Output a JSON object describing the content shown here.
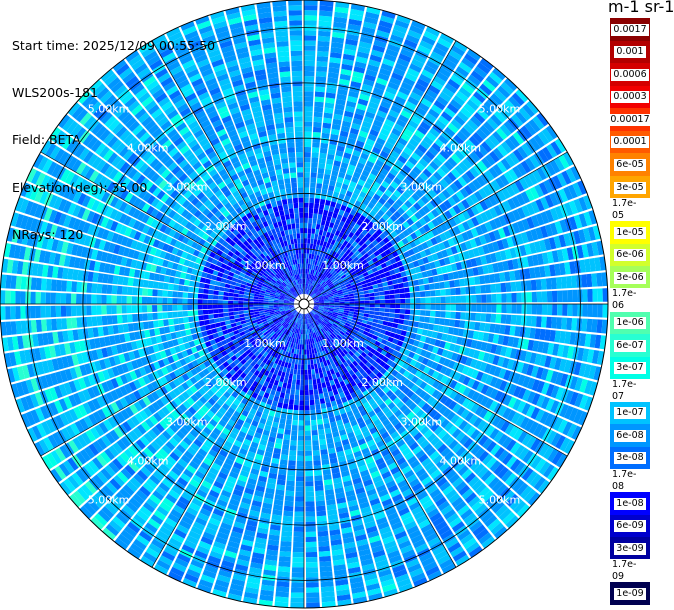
{
  "info": {
    "start_time": "Start time: 2025/12/09 00:55:50",
    "instrument": "WLS200s-181",
    "field": "Field: BETA",
    "elevation": "Elevation(deg): 35.00",
    "nrays": "NRays: 120"
  },
  "colorbar": {
    "unit_label": "m-1 sr-1",
    "levels": [
      {
        "label": "0.0017",
        "color": "#8b0000"
      },
      {
        "label": "0.001",
        "color": "#b30000"
      },
      {
        "label": "0.0006",
        "color": "#d40000"
      },
      {
        "label": "0.0003",
        "color": "#f20000"
      },
      {
        "label": "0.00017",
        "color": "#ff3200"
      },
      {
        "label": "0.0001",
        "color": "#ff5a00"
      },
      {
        "label": "6e-05",
        "color": "#ff8200"
      },
      {
        "label": "3e-05",
        "color": "#ffa500"
      },
      {
        "label": "1.7e-05",
        "color": "#ffcd00"
      },
      {
        "label": "1e-05",
        "color": "#ffff00"
      },
      {
        "label": "6e-06",
        "color": "#d2ff2d"
      },
      {
        "label": "3e-06",
        "color": "#a5ff5a"
      },
      {
        "label": "1.7e-06",
        "color": "#78ff87"
      },
      {
        "label": "1e-06",
        "color": "#50ffaf"
      },
      {
        "label": "6e-07",
        "color": "#28ffd2"
      },
      {
        "label": "3e-07",
        "color": "#00ffe6"
      },
      {
        "label": "1.7e-07",
        "color": "#00e6ff"
      },
      {
        "label": "1e-07",
        "color": "#00c3ff"
      },
      {
        "label": "6e-08",
        "color": "#0096ff"
      },
      {
        "label": "3e-08",
        "color": "#006eff"
      },
      {
        "label": "1.7e-08",
        "color": "#0046ff"
      },
      {
        "label": "1e-08",
        "color": "#0000ff"
      },
      {
        "label": "6e-09",
        "color": "#0000cd"
      },
      {
        "label": "3e-09",
        "color": "#0000a0"
      },
      {
        "label": "1.7e-09",
        "color": "#000078"
      },
      {
        "label": "1e-09",
        "color": "#000050"
      }
    ]
  },
  "chart_data": {
    "type": "heatmap",
    "projection": "polar",
    "n_rays": 120,
    "max_range_km": 5.5,
    "range_rings_km": [
      1.0,
      2.0,
      3.0,
      4.0,
      5.0
    ],
    "ring_labels": [
      "1.00km",
      "2.00km",
      "3.00km",
      "4.00km",
      "5.00km"
    ],
    "value_range": [
      "1e-09",
      "0.0017"
    ],
    "dominant_values": [
      "1e-08",
      "3e-08",
      "6e-08",
      "1e-07"
    ],
    "grid": true
  }
}
